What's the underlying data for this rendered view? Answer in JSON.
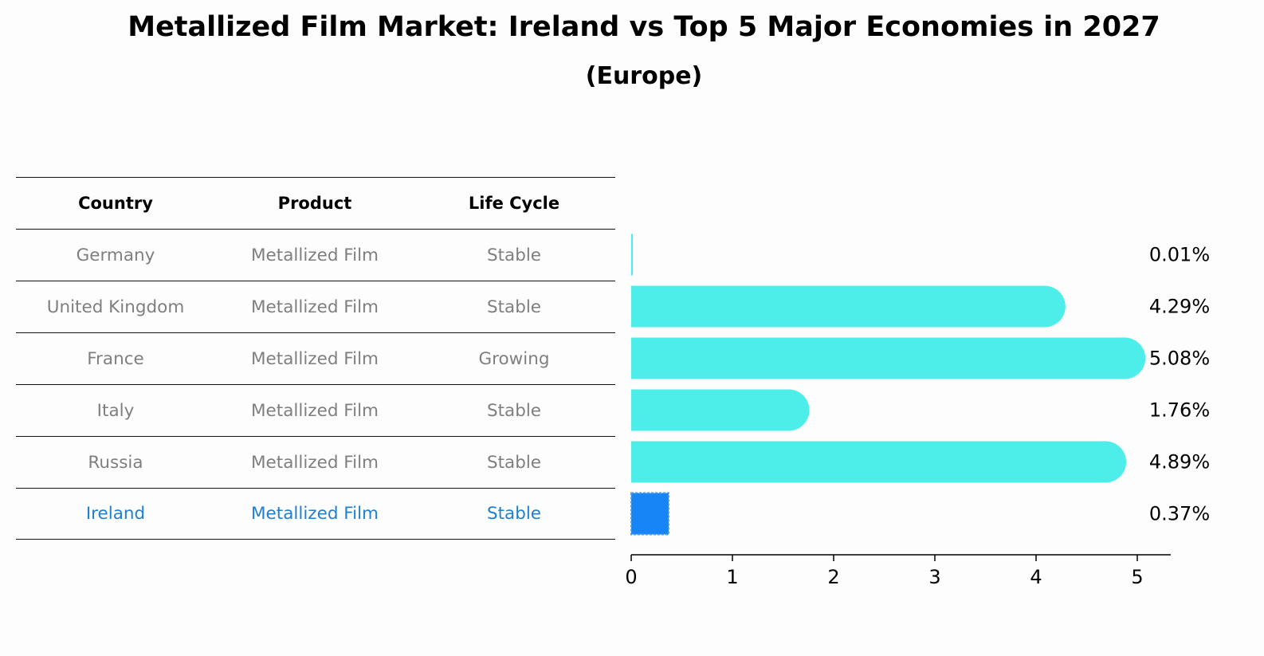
{
  "title": "Metallized Film Market: Ireland vs Top 5 Major Economies in 2027",
  "subtitle": "(Europe)",
  "table": {
    "headers": [
      "Country",
      "Product",
      "Life Cycle"
    ],
    "rows": [
      {
        "country": "Germany",
        "product": "Metallized Film",
        "life_cycle": "Stable"
      },
      {
        "country": "United Kingdom",
        "product": "Metallized Film",
        "life_cycle": "Stable"
      },
      {
        "country": "France",
        "product": "Metallized Film",
        "life_cycle": "Growing"
      },
      {
        "country": "Italy",
        "product": "Metallized Film",
        "life_cycle": "Stable"
      },
      {
        "country": "Russia",
        "product": "Metallized Film",
        "life_cycle": "Stable"
      },
      {
        "country": "Ireland",
        "product": "Metallized Film",
        "life_cycle": "Stable"
      }
    ]
  },
  "chart_data": {
    "type": "bar",
    "orientation": "horizontal",
    "categories": [
      "Germany",
      "United Kingdom",
      "France",
      "Italy",
      "Russia",
      "Ireland"
    ],
    "values": [
      0.01,
      4.29,
      5.08,
      1.76,
      4.89,
      0.37
    ],
    "value_labels": [
      "0.01%",
      "4.29%",
      "5.08%",
      "1.76%",
      "4.89%",
      "0.37%"
    ],
    "highlight": "Ireland",
    "xlim": [
      0,
      5.33
    ],
    "xticks": [
      0,
      1,
      2,
      3,
      4,
      5
    ],
    "xlabel": "",
    "ylabel": "",
    "colors": {
      "bar": "#4deeea",
      "highlight": "#1785f5",
      "highlight_edge": "#4a9de0"
    }
  }
}
